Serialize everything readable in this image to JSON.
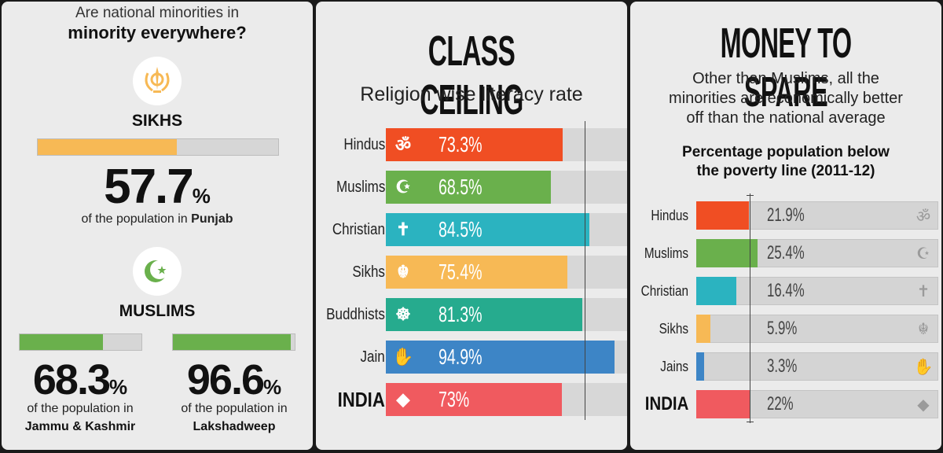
{
  "minorities": {
    "question_line1": "Are national minorities in",
    "question_line2": "minority everywhere?",
    "sikhs": {
      "title": "SIKHS",
      "value": "57.7",
      "pct": "%",
      "fraction": 0.577,
      "caption_prefix": "of the population in ",
      "region": "Punjab",
      "color": "#f7b955"
    },
    "muslims": {
      "title": "MUSLIMS",
      "color": "#6ab04c",
      "regions": [
        {
          "value": "68.3",
          "pct": "%",
          "fraction": 0.683,
          "caption": "of the population in",
          "region": "Jammu & Kashmir"
        },
        {
          "value": "96.6",
          "pct": "%",
          "fraction": 0.966,
          "caption": "of the population in",
          "region": "Lakshadweep"
        }
      ]
    }
  },
  "literacy": {
    "title": "CLASS CEILING",
    "subtitle": "Religion wise literacy rate",
    "chart_data": {
      "type": "bar",
      "title": "CLASS CEILING",
      "subtitle": "Religion wise literacy rate",
      "categories": [
        "Hindus",
        "Muslims",
        "Christian",
        "Sikhs",
        "Buddhists",
        "Jain",
        "INDIA"
      ],
      "values": [
        73.3,
        68.5,
        84.5,
        75.4,
        81.3,
        94.9,
        73
      ],
      "labels": [
        "73.3%",
        "68.5%",
        "84.5%",
        "75.4%",
        "81.3%",
        "94.9%",
        "73%"
      ],
      "colors": [
        "#f04e23",
        "#6ab04c",
        "#2bb3c0",
        "#f7b955",
        "#26ab8e",
        "#3d85c6",
        "#f05a5f"
      ],
      "icons": [
        "om-icon",
        "crescent-icon",
        "cross-icon",
        "khanda-icon",
        "dharma-wheel-icon",
        "jain-hand-icon",
        "india-map-icon"
      ],
      "xlim": [
        0,
        100
      ]
    }
  },
  "poverty": {
    "title": "MONEY  TO SPARE",
    "subtitle_lines": [
      "Other than Muslims, all the",
      "minorities are economically better",
      "off than the national average"
    ],
    "chart_title_lines": [
      "Percentage population below",
      "the poverty line (2011-12)"
    ],
    "chart_data": {
      "type": "bar",
      "title": "Percentage population below the poverty line (2011-12)",
      "categories": [
        "Hindus",
        "Muslims",
        "Christian",
        "Sikhs",
        "Jains",
        "INDIA"
      ],
      "values": [
        21.9,
        25.4,
        16.4,
        5.9,
        3.3,
        22
      ],
      "labels": [
        "21.9%",
        "25.4%",
        "16.4%",
        "5.9%",
        "3.3%",
        "22%"
      ],
      "colors": [
        "#f04e23",
        "#6ab04c",
        "#2bb3c0",
        "#f7b955",
        "#3d85c6",
        "#f05a5f"
      ],
      "icons": [
        "om-icon",
        "crescent-icon",
        "cross-icon",
        "khanda-icon",
        "jain-hand-icon",
        "india-map-icon"
      ],
      "xlim": [
        0,
        100
      ]
    }
  }
}
